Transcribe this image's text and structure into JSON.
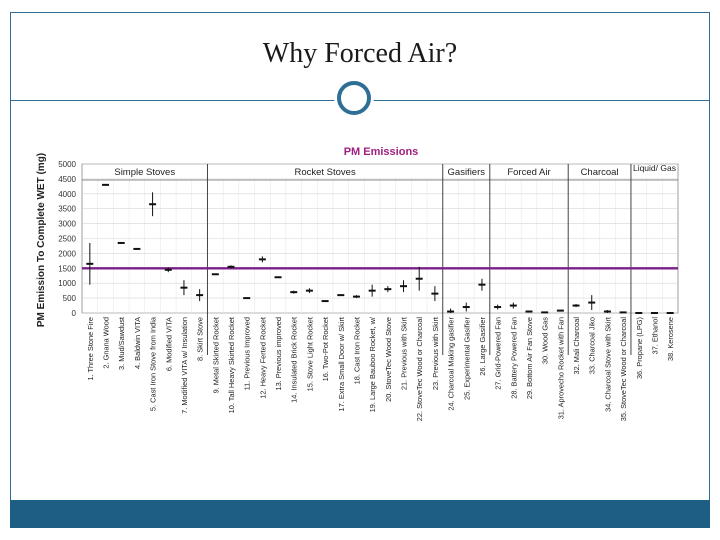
{
  "slide": {
    "title": "Why Forced Air?",
    "colors": {
      "accent": "#2f6e95",
      "footer": "#1f5e84"
    }
  },
  "chart_data": {
    "type": "scatter",
    "title": "PM Emissions",
    "ylabel": "PM Emission To Complete WET (mg)",
    "xlabel": "",
    "ylim": [
      0,
      5000
    ],
    "yticks": [
      0,
      500,
      1000,
      1500,
      2000,
      2500,
      3000,
      3500,
      4000,
      4500,
      5000
    ],
    "reference_line": {
      "value": 1500,
      "color": "#7b1f8a"
    },
    "title_color": "#a0207f",
    "groups": [
      {
        "label": "Simple Stoves",
        "start": 1,
        "end": 8
      },
      {
        "label": "Rocket Stoves",
        "start": 9,
        "end": 23
      },
      {
        "label": "Gasifiers",
        "start": 24,
        "end": 26
      },
      {
        "label": "Forced Air",
        "start": 27,
        "end": 31
      },
      {
        "label": "Charcoal",
        "start": 32,
        "end": 35
      },
      {
        "label": "Liquid/ Gas",
        "start": 36,
        "end": 38
      }
    ],
    "categories": [
      "1. Three Stone Fire",
      "2. Gnana Wood",
      "3. Mud/Sawdust",
      "4. Baldwin VITA",
      "5. Cast Iron Stove from India",
      "6. Modified VITA",
      "7. Modified VITA w/ Insulation",
      "8. Skirt Stove",
      "9. Metal Skirted Rocket",
      "10. Tall Heavy Skirted Rocket",
      "11. Previous Improved",
      "12. Heavy Ferted Rocket",
      "13. Previous improved",
      "14. Insulated Brick Rocket",
      "15. Stove Light Rocket",
      "16. Two-Pot Rocket",
      "17. Extra Small Door w/ Skirt",
      "18. Cast Iron Rocket",
      "19. Large Bauboo Rocket, w/",
      "20. StoveTec Wood Stove",
      "21. Previous with Skirt",
      "22. StoveTec Wood or Charcoal",
      "23. Previous with Skirt",
      "24. Charcoal Making gasifier",
      "25. Experimental Gasifier",
      "26. Large Gasifier",
      "27. Grid-Powered Fan",
      "28. Battery Powered Fan",
      "29. Bottom Air Fan Stove",
      "30. Wood Gas",
      "31. Aprovecho Rocket with Fan",
      "32. Mali Charcoal",
      "33. Charcoal Jiko",
      "34. Charcoal Stove with Skirt",
      "35. StoveTec Wood or Charcoal",
      "36. Propane (LPG)",
      "37. Ethanol",
      "38. Kerosene"
    ],
    "values": [
      1650,
      4300,
      2350,
      2150,
      3650,
      1450,
      850,
      600,
      1300,
      1550,
      500,
      1800,
      1200,
      700,
      750,
      400,
      600,
      550,
      750,
      800,
      900,
      1150,
      650,
      50,
      200,
      950,
      200,
      250,
      50,
      20,
      80,
      250,
      350,
      50,
      20,
      0,
      0,
      0
    ],
    "errors": [
      700,
      0,
      0,
      0,
      400,
      80,
      250,
      200,
      0,
      50,
      0,
      100,
      0,
      50,
      80,
      0,
      0,
      50,
      200,
      100,
      200,
      400,
      250,
      100,
      150,
      200,
      80,
      100,
      20,
      0,
      30,
      50,
      250,
      50,
      0,
      0,
      0,
      0
    ]
  }
}
